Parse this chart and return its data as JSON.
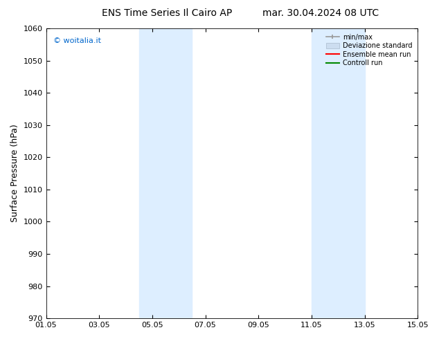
{
  "title": "ENS Time Series Il Cairo AP",
  "title_right": "mar. 30.04.2024 08 UTC",
  "ylabel": "Surface Pressure (hPa)",
  "ylim": [
    970,
    1060
  ],
  "yticks": [
    970,
    980,
    990,
    1000,
    1010,
    1020,
    1030,
    1040,
    1050,
    1060
  ],
  "xlim_days": [
    0,
    14
  ],
  "xtick_labels": [
    "01.05",
    "03.05",
    "05.05",
    "07.05",
    "09.05",
    "11.05",
    "13.05",
    "15.05"
  ],
  "xtick_positions": [
    0,
    2,
    4,
    6,
    8,
    10,
    12,
    14
  ],
  "shaded_bands": [
    {
      "xmin": 3.5,
      "xmax": 5.5
    },
    {
      "xmin": 10.0,
      "xmax": 12.0
    }
  ],
  "shade_color": "#ddeeff",
  "watermark": "© woitalia.it",
  "watermark_color": "#0066cc",
  "legend_items": [
    {
      "label": "min/max",
      "color": "#999999",
      "lw": 1.2,
      "type": "hbar"
    },
    {
      "label": "Deviazione standard",
      "color": "#ccddf0",
      "lw": 8,
      "type": "thick"
    },
    {
      "label": "Ensemble mean run",
      "color": "#ff0000",
      "lw": 1.5,
      "type": "line"
    },
    {
      "label": "Controll run",
      "color": "#008800",
      "lw": 1.5,
      "type": "line"
    }
  ],
  "background_color": "#ffffff",
  "title_fontsize": 10,
  "tick_fontsize": 8,
  "ylabel_fontsize": 9
}
